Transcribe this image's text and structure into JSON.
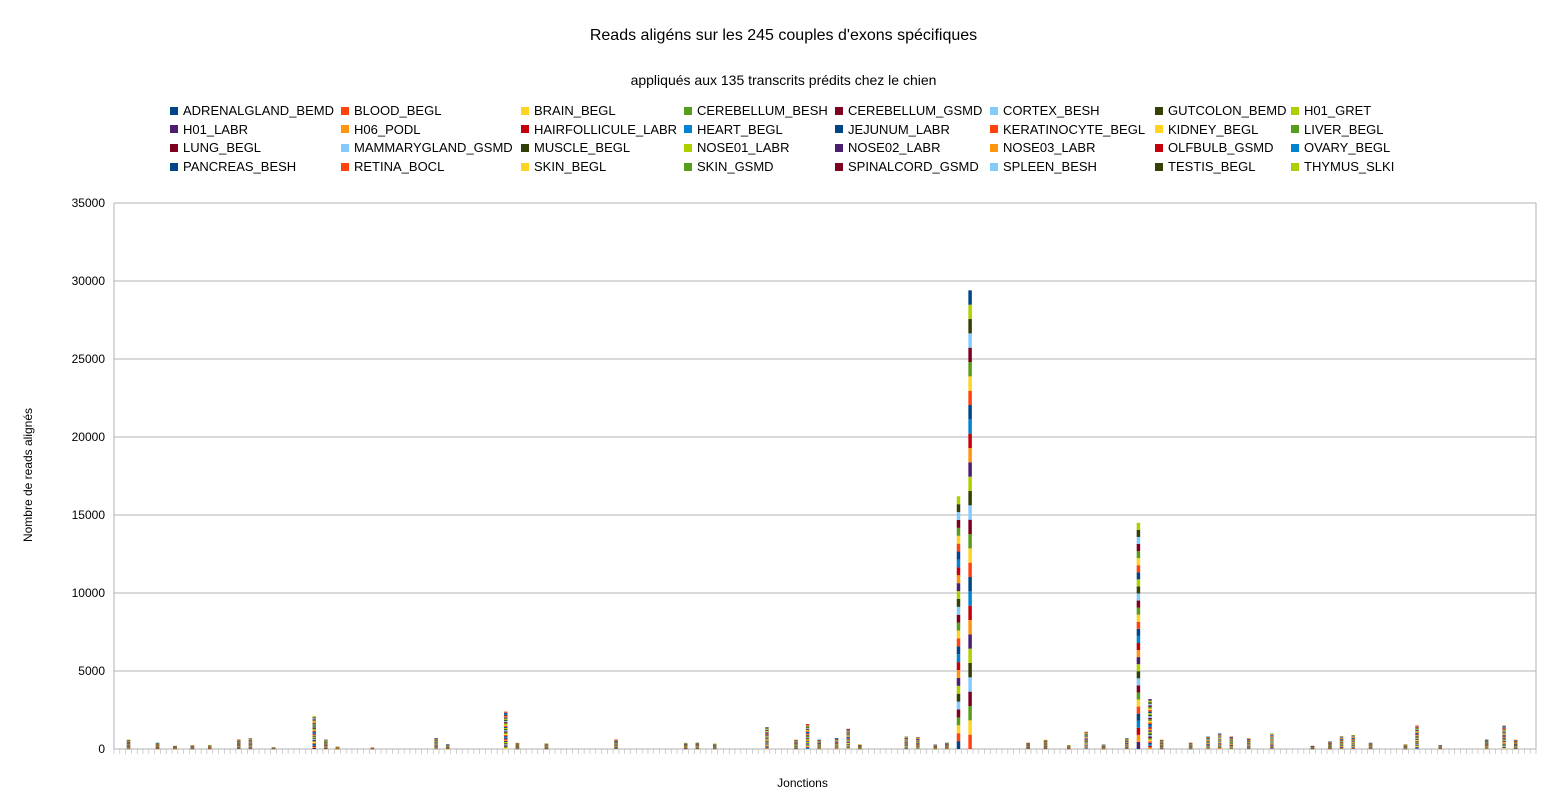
{
  "chart_data": {
    "type": "bar",
    "stacked": true,
    "title": "Reads aligéns sur les 245 couples d'exons spécifiques",
    "subtitle": "appliqués aux 135 transcrits prédits chez le chien",
    "xlabel": "Jonctions",
    "ylabel": "Nombre de reads alignés",
    "ylim": [
      0,
      35000
    ],
    "yticks": [
      0,
      5000,
      10000,
      15000,
      20000,
      25000,
      30000,
      35000
    ],
    "grid": true,
    "legend_position": "top",
    "category_count": 245,
    "series": [
      {
        "name": "ADRENALGLAND_BEMD",
        "color": "#004586"
      },
      {
        "name": "BLOOD_BEGL",
        "color": "#ff420e"
      },
      {
        "name": "BRAIN_BEGL",
        "color": "#ffd320"
      },
      {
        "name": "CEREBELLUM_BESH",
        "color": "#579d1c"
      },
      {
        "name": "CEREBELLUM_GSMD",
        "color": "#7e0021"
      },
      {
        "name": "CORTEX_BESH",
        "color": "#83caff"
      },
      {
        "name": "GUTCOLON_BEMD",
        "color": "#314004"
      },
      {
        "name": "H01_GRET",
        "color": "#aecf00"
      },
      {
        "name": "H01_LABR",
        "color": "#4b1f6f"
      },
      {
        "name": "H06_PODL",
        "color": "#ff950e"
      },
      {
        "name": "HAIRFOLLICULE_LABR",
        "color": "#c5000b"
      },
      {
        "name": "HEART_BEGL",
        "color": "#0084d1"
      },
      {
        "name": "JEJUNUM_LABR",
        "color": "#004586"
      },
      {
        "name": "KERATINOCYTE_BEGL",
        "color": "#ff420e"
      },
      {
        "name": "KIDNEY_BEGL",
        "color": "#ffd320"
      },
      {
        "name": "LIVER_BEGL",
        "color": "#579d1c"
      },
      {
        "name": "LUNG_BEGL",
        "color": "#7e0021"
      },
      {
        "name": "MAMMARYGLAND_GSMD",
        "color": "#83caff"
      },
      {
        "name": "MUSCLE_BEGL",
        "color": "#314004"
      },
      {
        "name": "NOSE01_LABR",
        "color": "#aecf00"
      },
      {
        "name": "NOSE02_LABR",
        "color": "#4b1f6f"
      },
      {
        "name": "NOSE03_LABR",
        "color": "#ff950e"
      },
      {
        "name": "OLFBULB_GSMD",
        "color": "#c5000b"
      },
      {
        "name": "OVARY_BEGL",
        "color": "#0084d1"
      },
      {
        "name": "PANCREAS_BESH",
        "color": "#004586"
      },
      {
        "name": "RETINA_BOCL",
        "color": "#ff420e"
      },
      {
        "name": "SKIN_BEGL",
        "color": "#ffd320"
      },
      {
        "name": "SKIN_GSMD",
        "color": "#579d1c"
      },
      {
        "name": "SPINALCORD_GSMD",
        "color": "#7e0021"
      },
      {
        "name": "SPLEEN_BESH",
        "color": "#83caff"
      },
      {
        "name": "TESTIS_BEGL",
        "color": "#314004"
      },
      {
        "name": "THYMUS_SLKI",
        "color": "#aecf00"
      }
    ],
    "bar_totals": [
      {
        "index": 2,
        "total": 600
      },
      {
        "index": 7,
        "total": 400
      },
      {
        "index": 10,
        "total": 200
      },
      {
        "index": 13,
        "total": 250
      },
      {
        "index": 16,
        "total": 250
      },
      {
        "index": 21,
        "total": 600
      },
      {
        "index": 23,
        "total": 700
      },
      {
        "index": 27,
        "total": 100
      },
      {
        "index": 34,
        "total": 2100
      },
      {
        "index": 36,
        "total": 600
      },
      {
        "index": 38,
        "total": 150
      },
      {
        "index": 44,
        "total": 80
      },
      {
        "index": 55,
        "total": 700
      },
      {
        "index": 57,
        "total": 300
      },
      {
        "index": 67,
        "total": 2400
      },
      {
        "index": 69,
        "total": 400
      },
      {
        "index": 74,
        "total": 350
      },
      {
        "index": 86,
        "total": 600
      },
      {
        "index": 98,
        "total": 400
      },
      {
        "index": 100,
        "total": 400
      },
      {
        "index": 103,
        "total": 350
      },
      {
        "index": 112,
        "total": 1400
      },
      {
        "index": 117,
        "total": 600
      },
      {
        "index": 119,
        "total": 1600
      },
      {
        "index": 121,
        "total": 600
      },
      {
        "index": 124,
        "total": 700
      },
      {
        "index": 126,
        "total": 1300
      },
      {
        "index": 128,
        "total": 300
      },
      {
        "index": 136,
        "total": 800
      },
      {
        "index": 138,
        "total": 750
      },
      {
        "index": 141,
        "total": 300
      },
      {
        "index": 143,
        "total": 400
      },
      {
        "index": 145,
        "total": 16200
      },
      {
        "index": 147,
        "total": 29400
      },
      {
        "index": 157,
        "total": 400
      },
      {
        "index": 160,
        "total": 600
      },
      {
        "index": 164,
        "total": 250
      },
      {
        "index": 167,
        "total": 1100
      },
      {
        "index": 170,
        "total": 300
      },
      {
        "index": 174,
        "total": 700
      },
      {
        "index": 176,
        "total": 14500
      },
      {
        "index": 178,
        "total": 3200
      },
      {
        "index": 180,
        "total": 600
      },
      {
        "index": 185,
        "total": 400
      },
      {
        "index": 188,
        "total": 800
      },
      {
        "index": 190,
        "total": 1000
      },
      {
        "index": 192,
        "total": 800
      },
      {
        "index": 195,
        "total": 700
      },
      {
        "index": 199,
        "total": 1000
      },
      {
        "index": 206,
        "total": 200
      },
      {
        "index": 209,
        "total": 500
      },
      {
        "index": 211,
        "total": 800
      },
      {
        "index": 213,
        "total": 900
      },
      {
        "index": 216,
        "total": 400
      },
      {
        "index": 222,
        "total": 300
      },
      {
        "index": 224,
        "total": 1500
      },
      {
        "index": 228,
        "total": 250
      },
      {
        "index": 236,
        "total": 600
      },
      {
        "index": 239,
        "total": 1500
      },
      {
        "index": 241,
        "total": 600
      }
    ]
  }
}
